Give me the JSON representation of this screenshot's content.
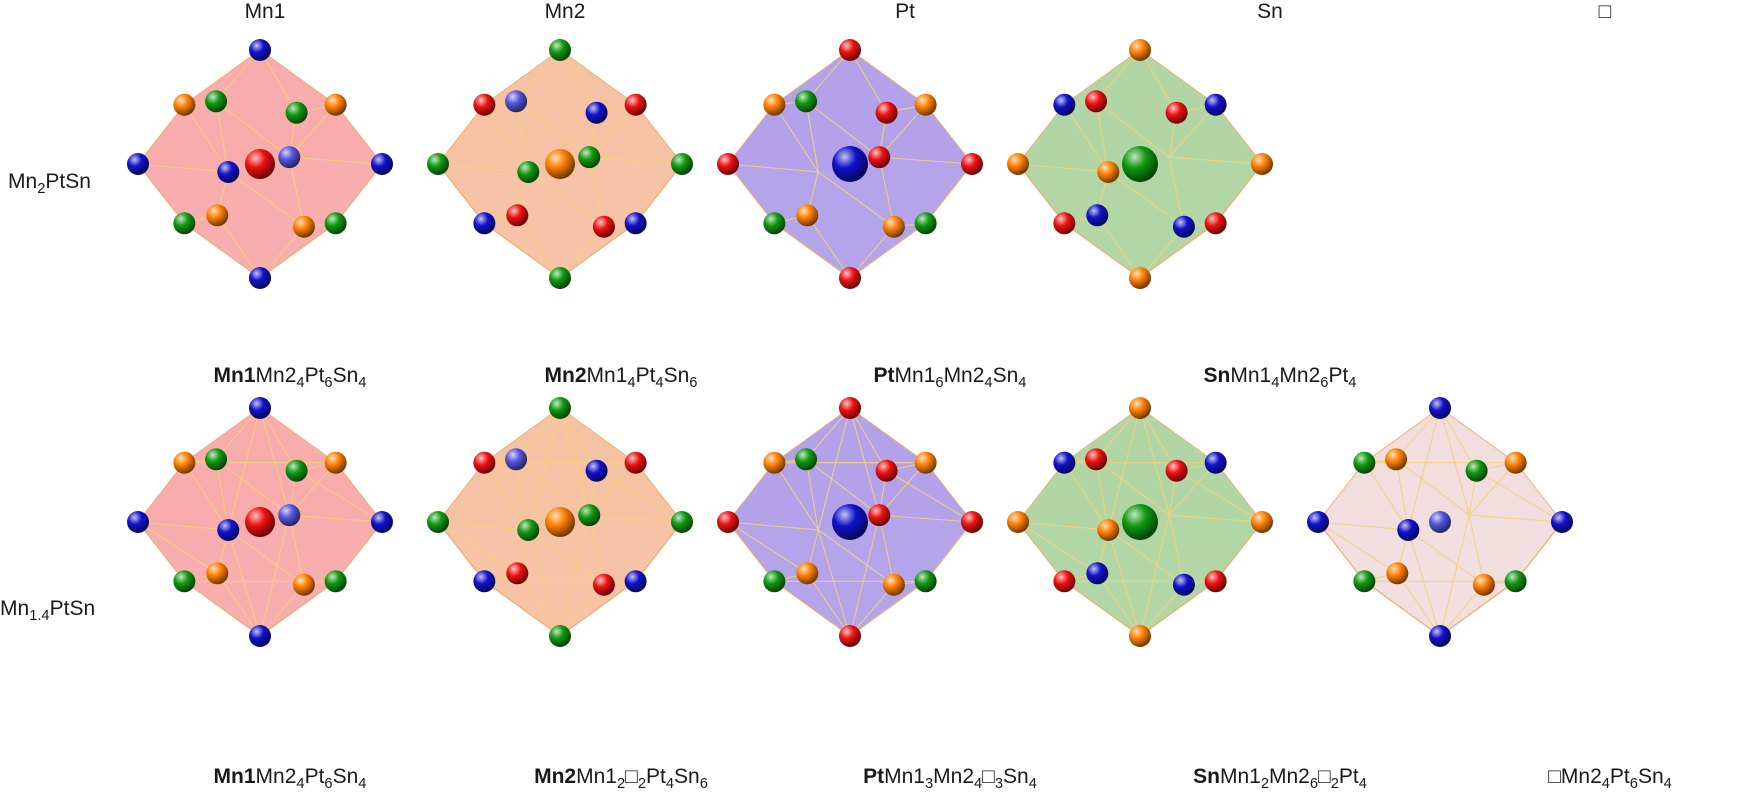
{
  "columns": [
    {
      "key": "mn1",
      "label": "Mn1"
    },
    {
      "key": "mn2",
      "label": "Mn2"
    },
    {
      "key": "pt",
      "label": "Pt"
    },
    {
      "key": "sn",
      "label": "Sn"
    },
    {
      "key": "vac",
      "label": "□"
    }
  ],
  "rows": [
    {
      "label_main": "Mn",
      "label_sub": "2",
      "label_tail": "PtSn"
    },
    {
      "label_main": "Mn",
      "label_sub": "1.4",
      "label_tail": "PtSn"
    }
  ],
  "element_colors": {
    "Mn1": "#ee1111",
    "Mn2": "#ff8000",
    "Pt": "#1111cc",
    "Sn": "#119911",
    "vacancy": "#5555dd"
  },
  "polyhedron_colors": {
    "mn1": "#f7a0a0",
    "mn2": "#f5b896",
    "pt": "#a794e6",
    "sn": "#a6cf98",
    "vac": "#efd8d8"
  },
  "formulas": {
    "r0": [
      [
        {
          "t": "Mn1",
          "b": true
        },
        {
          "t": "Mn2"
        },
        {
          "t": "4",
          "s": true
        },
        {
          "t": "Pt"
        },
        {
          "t": "6",
          "s": true
        },
        {
          "t": "Sn"
        },
        {
          "t": "4",
          "s": true
        }
      ],
      [
        {
          "t": "Mn2",
          "b": true
        },
        {
          "t": "Mn1"
        },
        {
          "t": "4",
          "s": true
        },
        {
          "t": "Pt"
        },
        {
          "t": "4",
          "s": true
        },
        {
          "t": "Sn"
        },
        {
          "t": "6",
          "s": true
        }
      ],
      [
        {
          "t": "Pt",
          "b": true
        },
        {
          "t": "Mn1"
        },
        {
          "t": "6",
          "s": true
        },
        {
          "t": "Mn2"
        },
        {
          "t": "4",
          "s": true
        },
        {
          "t": "Sn"
        },
        {
          "t": "4",
          "s": true
        }
      ],
      [
        {
          "t": "Sn",
          "b": true
        },
        {
          "t": "Mn1"
        },
        {
          "t": "4",
          "s": true
        },
        {
          "t": "Mn2"
        },
        {
          "t": "6",
          "s": true
        },
        {
          "t": "Pt"
        },
        {
          "t": "4",
          "s": true
        }
      ]
    ],
    "r1": [
      [
        {
          "t": "Mn1",
          "b": true
        },
        {
          "t": "Mn2"
        },
        {
          "t": "4",
          "s": true
        },
        {
          "t": "Pt"
        },
        {
          "t": "6",
          "s": true
        },
        {
          "t": "Sn"
        },
        {
          "t": "4",
          "s": true
        }
      ],
      [
        {
          "t": "Mn2",
          "b": true
        },
        {
          "t": "Mn1"
        },
        {
          "t": "2",
          "s": true
        },
        {
          "t": "□"
        },
        {
          "t": "2",
          "s": true
        },
        {
          "t": "Pt"
        },
        {
          "t": "4",
          "s": true
        },
        {
          "t": "Sn"
        },
        {
          "t": "6",
          "s": true
        }
      ],
      [
        {
          "t": "Pt",
          "b": true
        },
        {
          "t": "Mn1"
        },
        {
          "t": "3",
          "s": true
        },
        {
          "t": "Mn2"
        },
        {
          "t": "4",
          "s": true
        },
        {
          "t": "□"
        },
        {
          "t": "3",
          "s": true
        },
        {
          "t": "Sn"
        },
        {
          "t": "4",
          "s": true
        }
      ],
      [
        {
          "t": "Sn",
          "b": true
        },
        {
          "t": "Mn1"
        },
        {
          "t": "2",
          "s": true
        },
        {
          "t": "Mn2"
        },
        {
          "t": "6",
          "s": true
        },
        {
          "t": "□"
        },
        {
          "t": "2",
          "s": true
        },
        {
          "t": "Pt"
        },
        {
          "t": "4",
          "s": true
        }
      ],
      [
        {
          "t": "□"
        },
        {
          "t": "Mn2"
        },
        {
          "t": "4",
          "s": true
        },
        {
          "t": "Pt"
        },
        {
          "t": "6",
          "s": true
        },
        {
          "t": "Sn"
        },
        {
          "t": "4",
          "s": true
        }
      ]
    ]
  }
}
